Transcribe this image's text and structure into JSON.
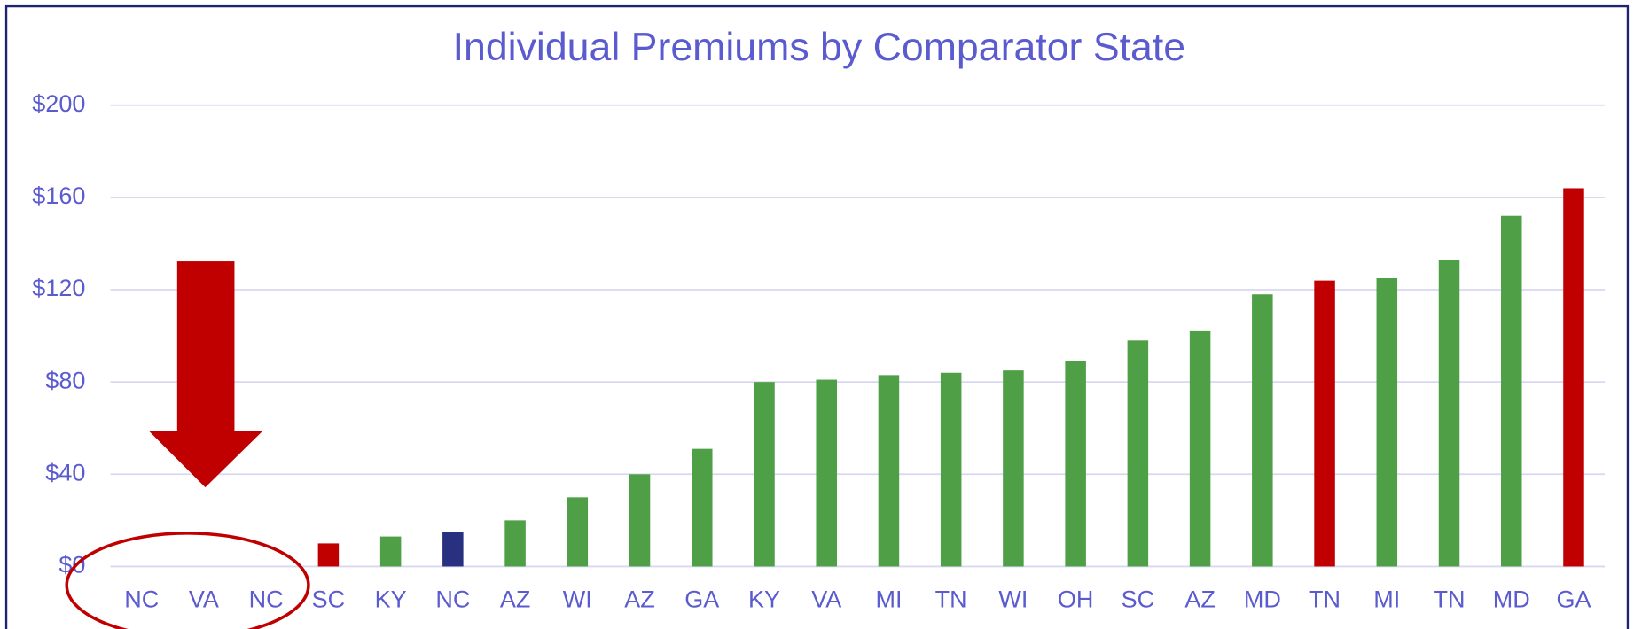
{
  "chart_data": {
    "type": "bar",
    "title": "Individual Premiums by Comparator State",
    "categories": [
      "NC",
      "VA",
      "NC",
      "SC",
      "KY",
      "NC",
      "AZ",
      "WI",
      "AZ",
      "GA",
      "KY",
      "VA",
      "MI",
      "TN",
      "WI",
      "OH",
      "SC",
      "AZ",
      "MD",
      "TN",
      "MI",
      "TN",
      "MD",
      "GA"
    ],
    "values": [
      0,
      0,
      0,
      10,
      13,
      15,
      20,
      30,
      40,
      51,
      80,
      81,
      83,
      84,
      85,
      89,
      98,
      102,
      118,
      124,
      125,
      133,
      152,
      164
    ],
    "colors": [
      "#4e9f46",
      "#4e9f46",
      "#4e9f46",
      "#c00000",
      "#4e9f46",
      "#283080",
      "#4e9f46",
      "#4e9f46",
      "#4e9f46",
      "#4e9f46",
      "#4e9f46",
      "#4e9f46",
      "#4e9f46",
      "#4e9f46",
      "#4e9f46",
      "#4e9f46",
      "#4e9f46",
      "#4e9f46",
      "#4e9f46",
      "#c00000",
      "#4e9f46",
      "#4e9f46",
      "#4e9f46",
      "#c00000"
    ],
    "ylim": [
      0,
      200
    ],
    "yticks": [
      {
        "value": 0,
        "label": "$0"
      },
      {
        "value": 40,
        "label": "$40"
      },
      {
        "value": 80,
        "label": "$80"
      },
      {
        "value": 120,
        "label": "$120"
      },
      {
        "value": 160,
        "label": "$160"
      },
      {
        "value": 200,
        "label": "$200"
      }
    ],
    "grid": true
  }
}
